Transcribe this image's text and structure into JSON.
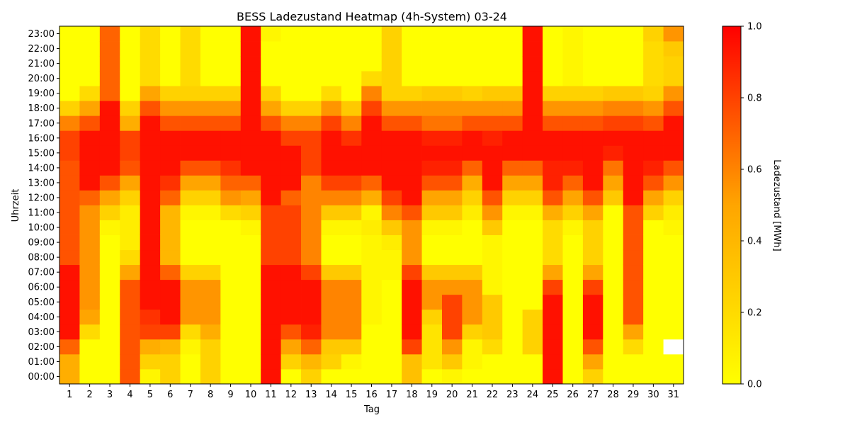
{
  "chart_data": {
    "type": "heatmap",
    "title": "BESS Ladezustand Heatmap (4h-System) 03-24",
    "xlabel": "Tag",
    "ylabel": "Uhrzeit",
    "colorbar_label": "Ladezustand [MWh]",
    "colorbar_ticks": [
      "0.0",
      "0.2",
      "0.4",
      "0.6",
      "0.8",
      "1.0"
    ],
    "vmin": 0.0,
    "vmax": 1.0,
    "colormap": [
      "#ffff00",
      "#ffa500",
      "#ff0000"
    ],
    "x_categories": [
      "1",
      "2",
      "3",
      "4",
      "5",
      "6",
      "7",
      "8",
      "9",
      "10",
      "11",
      "12",
      "13",
      "14",
      "15",
      "16",
      "17",
      "18",
      "19",
      "20",
      "21",
      "22",
      "23",
      "24",
      "25",
      "26",
      "27",
      "28",
      "29",
      "30",
      "31"
    ],
    "y_categories": [
      "00:00",
      "01:00",
      "02:00",
      "03:00",
      "04:00",
      "05:00",
      "06:00",
      "07:00",
      "08:00",
      "09:00",
      "10:00",
      "11:00",
      "12:00",
      "13:00",
      "14:00",
      "15:00",
      "16:00",
      "17:00",
      "18:00",
      "19:00",
      "20:00",
      "21:00",
      "22:00",
      "23:00"
    ],
    "values_by_day": [
      [
        0.45,
        0.45,
        0.7,
        0.95,
        0.95,
        0.95,
        0.95,
        0.95,
        0.75,
        0.75,
        0.75,
        0.75,
        0.75,
        0.75,
        0.75,
        0.8,
        0.8,
        0.6,
        0.25,
        0.0,
        0.0,
        0.0,
        0.0,
        0.0
      ],
      [
        0.0,
        0.0,
        0.0,
        0.2,
        0.5,
        0.55,
        0.55,
        0.55,
        0.55,
        0.55,
        0.55,
        0.55,
        0.7,
        0.95,
        0.95,
        0.95,
        0.95,
        0.75,
        0.5,
        0.2,
        0.0,
        0.0,
        0.0,
        0.0
      ],
      [
        0.0,
        0.0,
        0.0,
        0.0,
        0.0,
        0.0,
        0.0,
        0.0,
        0.0,
        0.0,
        0.05,
        0.25,
        0.5,
        0.75,
        0.95,
        0.95,
        0.95,
        0.95,
        0.95,
        0.7,
        0.7,
        0.7,
        0.7,
        0.7
      ],
      [
        0.75,
        0.75,
        0.75,
        0.75,
        0.75,
        0.75,
        0.75,
        0.5,
        0.2,
        0.1,
        0.1,
        0.1,
        0.25,
        0.5,
        0.75,
        0.8,
        0.8,
        0.45,
        0.25,
        0.0,
        0.0,
        0.0,
        0.0,
        0.0
      ],
      [
        0.05,
        0.25,
        0.45,
        0.8,
        0.85,
        0.95,
        0.95,
        0.95,
        0.95,
        0.95,
        0.95,
        0.95,
        0.95,
        0.95,
        0.95,
        0.95,
        0.95,
        0.95,
        0.75,
        0.5,
        0.2,
        0.2,
        0.2,
        0.2
      ],
      [
        0.25,
        0.25,
        0.4,
        0.8,
        0.95,
        0.95,
        0.95,
        0.7,
        0.4,
        0.4,
        0.4,
        0.4,
        0.7,
        0.85,
        0.95,
        0.95,
        0.95,
        0.75,
        0.55,
        0.25,
        0.0,
        0.0,
        0.0,
        0.0
      ],
      [
        0.0,
        0.0,
        0.05,
        0.2,
        0.55,
        0.55,
        0.55,
        0.25,
        0.0,
        0.0,
        0.0,
        0.05,
        0.25,
        0.5,
        0.75,
        0.95,
        0.95,
        0.75,
        0.55,
        0.25,
        0.2,
        0.2,
        0.2,
        0.2
      ],
      [
        0.25,
        0.25,
        0.25,
        0.45,
        0.55,
        0.55,
        0.55,
        0.25,
        0.0,
        0.0,
        0.0,
        0.05,
        0.25,
        0.5,
        0.75,
        0.95,
        0.95,
        0.75,
        0.55,
        0.25,
        0.0,
        0.0,
        0.0,
        0.0
      ],
      [
        0.0,
        0.0,
        0.0,
        0.0,
        0.0,
        0.0,
        0.0,
        0.0,
        0.0,
        0.0,
        0.0,
        0.2,
        0.55,
        0.7,
        0.85,
        0.95,
        0.95,
        0.75,
        0.55,
        0.25,
        0.0,
        0.0,
        0.0,
        0.0
      ],
      [
        0.0,
        0.0,
        0.0,
        0.0,
        0.0,
        0.0,
        0.0,
        0.0,
        0.0,
        0.0,
        0.05,
        0.25,
        0.5,
        0.7,
        0.95,
        0.95,
        0.95,
        0.95,
        0.95,
        0.95,
        0.95,
        0.95,
        0.95,
        0.95
      ],
      [
        0.95,
        0.95,
        0.95,
        0.95,
        0.95,
        0.95,
        0.95,
        0.95,
        0.8,
        0.8,
        0.8,
        0.8,
        0.95,
        0.95,
        0.95,
        0.95,
        0.95,
        0.75,
        0.5,
        0.25,
        0.0,
        0.0,
        0.0,
        0.05
      ],
      [
        0.0,
        0.25,
        0.5,
        0.75,
        0.95,
        0.95,
        0.95,
        0.95,
        0.8,
        0.8,
        0.8,
        0.8,
        0.7,
        0.95,
        0.95,
        0.95,
        0.8,
        0.6,
        0.25,
        0.0,
        0.0,
        0.0,
        0.0,
        0.0
      ],
      [
        0.25,
        0.4,
        0.7,
        0.9,
        0.95,
        0.95,
        0.95,
        0.8,
        0.6,
        0.6,
        0.6,
        0.6,
        0.6,
        0.6,
        0.8,
        0.8,
        0.8,
        0.6,
        0.25,
        0.0,
        0.0,
        0.0,
        0.0,
        0.0
      ],
      [
        0.0,
        0.25,
        0.3,
        0.6,
        0.6,
        0.6,
        0.6,
        0.3,
        0.0,
        0.0,
        0.05,
        0.3,
        0.6,
        0.8,
        0.95,
        0.95,
        0.95,
        0.8,
        0.55,
        0.2,
        0.0,
        0.0,
        0.0,
        0.0
      ],
      [
        0.0,
        0.05,
        0.3,
        0.6,
        0.6,
        0.6,
        0.6,
        0.3,
        0.0,
        0.0,
        0.05,
        0.3,
        0.6,
        0.8,
        0.95,
        0.95,
        0.85,
        0.6,
        0.3,
        0.0,
        0.0,
        0.0,
        0.0,
        0.0
      ],
      [
        0.0,
        0.0,
        0.0,
        0.0,
        0.05,
        0.05,
        0.05,
        0.05,
        0.05,
        0.05,
        0.1,
        0.05,
        0.45,
        0.7,
        0.95,
        0.95,
        0.95,
        0.95,
        0.8,
        0.6,
        0.2,
        0.0,
        0.0,
        0.0
      ],
      [
        0.0,
        0.0,
        0.0,
        0.0,
        0.0,
        0.0,
        0.0,
        0.05,
        0.05,
        0.1,
        0.3,
        0.6,
        0.8,
        0.95,
        0.95,
        0.95,
        0.95,
        0.75,
        0.55,
        0.25,
        0.25,
        0.25,
        0.25,
        0.25
      ],
      [
        0.35,
        0.35,
        0.8,
        0.95,
        0.95,
        0.95,
        0.95,
        0.8,
        0.55,
        0.55,
        0.55,
        0.75,
        0.95,
        0.95,
        0.95,
        0.95,
        0.95,
        0.75,
        0.55,
        0.25,
        0.0,
        0.0,
        0.0,
        0.0
      ],
      [
        0.0,
        0.15,
        0.15,
        0.15,
        0.25,
        0.55,
        0.55,
        0.3,
        0.0,
        0.0,
        0.05,
        0.3,
        0.5,
        0.75,
        0.9,
        0.95,
        0.9,
        0.65,
        0.55,
        0.3,
        0.0,
        0.0,
        0.0,
        0.0
      ],
      [
        0.05,
        0.3,
        0.55,
        0.8,
        0.8,
        0.8,
        0.55,
        0.3,
        0.0,
        0.0,
        0.05,
        0.3,
        0.5,
        0.75,
        0.9,
        0.95,
        0.9,
        0.65,
        0.55,
        0.3,
        0.0,
        0.0,
        0.0,
        0.0
      ],
      [
        0.0,
        0.05,
        0.05,
        0.25,
        0.55,
        0.55,
        0.55,
        0.3,
        0.0,
        0.0,
        0.0,
        0.1,
        0.25,
        0.45,
        0.7,
        0.95,
        0.95,
        0.75,
        0.55,
        0.25,
        0.0,
        0.0,
        0.0,
        0.0
      ],
      [
        0.0,
        0.0,
        0.2,
        0.3,
        0.3,
        0.3,
        0.05,
        0.05,
        0.05,
        0.05,
        0.3,
        0.55,
        0.75,
        0.95,
        0.95,
        0.95,
        0.9,
        0.75,
        0.55,
        0.3,
        0.0,
        0.0,
        0.0,
        0.0
      ],
      [
        0.0,
        0.0,
        0.0,
        0.0,
        0.0,
        0.0,
        0.0,
        0.0,
        0.0,
        0.0,
        0.0,
        0.05,
        0.25,
        0.5,
        0.7,
        0.95,
        0.95,
        0.75,
        0.55,
        0.3,
        0.0,
        0.0,
        0.0,
        0.0
      ],
      [
        0.0,
        0.0,
        0.25,
        0.25,
        0.25,
        0.0,
        0.0,
        0.0,
        0.0,
        0.0,
        0.0,
        0.05,
        0.25,
        0.5,
        0.7,
        0.95,
        0.95,
        0.95,
        0.95,
        0.95,
        0.95,
        0.95,
        0.95,
        0.95
      ],
      [
        0.95,
        0.95,
        0.95,
        0.95,
        0.95,
        0.95,
        0.8,
        0.5,
        0.2,
        0.2,
        0.2,
        0.45,
        0.75,
        0.9,
        0.9,
        0.95,
        0.95,
        0.75,
        0.55,
        0.25,
        0.0,
        0.0,
        0.0,
        0.0
      ],
      [
        0.0,
        0.0,
        0.0,
        0.0,
        0.0,
        0.0,
        0.0,
        0.0,
        0.0,
        0.0,
        0.05,
        0.25,
        0.5,
        0.7,
        0.9,
        0.95,
        0.95,
        0.75,
        0.55,
        0.25,
        0.05,
        0.05,
        0.05,
        0.05
      ],
      [
        0.25,
        0.5,
        0.75,
        0.95,
        0.95,
        0.95,
        0.8,
        0.5,
        0.25,
        0.25,
        0.25,
        0.5,
        0.75,
        0.95,
        0.95,
        0.95,
        0.95,
        0.75,
        0.55,
        0.25,
        0.0,
        0.0,
        0.0,
        0.0
      ],
      [
        0.0,
        0.0,
        0.0,
        0.0,
        0.0,
        0.0,
        0.0,
        0.0,
        0.0,
        0.0,
        0.0,
        0.0,
        0.3,
        0.5,
        0.65,
        0.9,
        0.95,
        0.8,
        0.6,
        0.3,
        0.0,
        0.0,
        0.0,
        0.0
      ],
      [
        0.0,
        0.0,
        0.2,
        0.5,
        0.75,
        0.75,
        0.75,
        0.75,
        0.75,
        0.75,
        0.75,
        0.75,
        0.95,
        0.95,
        0.95,
        0.95,
        0.95,
        0.8,
        0.6,
        0.3,
        0.0,
        0.0,
        0.0,
        0.0
      ],
      [
        0.0,
        0.0,
        0.0,
        0.0,
        0.0,
        0.0,
        0.0,
        0.0,
        0.0,
        0.0,
        0.0,
        0.25,
        0.5,
        0.75,
        0.9,
        0.95,
        0.95,
        0.75,
        0.55,
        0.25,
        0.2,
        0.2,
        0.2,
        0.25
      ],
      [
        0.0,
        0.0,
        null,
        0.0,
        0.0,
        0.0,
        0.0,
        0.0,
        0.0,
        0.0,
        0.05,
        0.1,
        0.25,
        0.55,
        0.75,
        0.95,
        0.95,
        0.95,
        0.75,
        0.55,
        0.25,
        0.25,
        0.3,
        0.55
      ]
    ]
  }
}
